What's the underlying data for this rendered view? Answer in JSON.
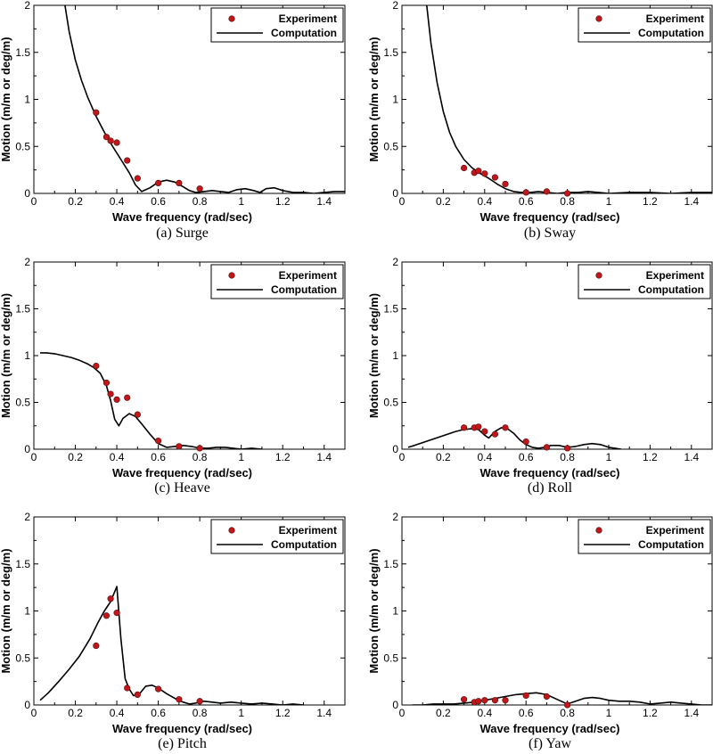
{
  "colors": {
    "marker": "#c0171b",
    "marker_edge": "#5a0a0a",
    "line": "#000000",
    "frame": "#000000"
  },
  "chart_data": [
    {
      "type": "line+scatter",
      "caption": "(a) Surge",
      "xlabel": "Wave frequency (rad/sec)",
      "ylabel": "Motion (m/m or deg/m)",
      "xlim": [
        0,
        1.5
      ],
      "ylim": [
        0,
        2
      ],
      "xticks": [
        "0",
        "0.2",
        "0.4",
        "0.6",
        "0.8",
        "1",
        "1.2",
        "1.4"
      ],
      "yticks": [
        "0",
        "0.5",
        "1",
        "1.5",
        "2"
      ],
      "legend": {
        "position": "top-right",
        "experiment_label": "Experiment",
        "computation_label": "Computation"
      },
      "experiment": {
        "x": [
          0.3,
          0.35,
          0.37,
          0.4,
          0.45,
          0.5,
          0.6,
          0.7,
          0.8
        ],
        "y": [
          0.86,
          0.6,
          0.56,
          0.54,
          0.35,
          0.16,
          0.11,
          0.11,
          0.05
        ]
      },
      "computation": {
        "x": [
          0.15,
          0.17,
          0.2,
          0.23,
          0.26,
          0.3,
          0.34,
          0.38,
          0.42,
          0.46,
          0.49,
          0.52,
          0.56,
          0.6,
          0.64,
          0.68,
          0.72,
          0.75,
          0.78,
          0.82,
          0.86,
          0.9,
          0.94,
          0.98,
          1.02,
          1.06,
          1.09,
          1.12,
          1.16,
          1.2,
          1.25,
          1.3,
          1.35,
          1.4,
          1.45,
          1.5
        ],
        "y": [
          2.0,
          1.72,
          1.42,
          1.2,
          1.02,
          0.82,
          0.65,
          0.5,
          0.36,
          0.22,
          0.09,
          0.02,
          0.06,
          0.12,
          0.14,
          0.12,
          0.07,
          0.03,
          0.01,
          0.02,
          0.03,
          0.02,
          0.01,
          0.04,
          0.05,
          0.03,
          0.01,
          0.05,
          0.06,
          0.03,
          0.01,
          0.01,
          0.0,
          0.01,
          0.02,
          0.02
        ]
      }
    },
    {
      "type": "line+scatter",
      "caption": "(b) Sway",
      "xlabel": "Wave frequency (rad/sec)",
      "ylabel": "Motion (m/m or deg/m)",
      "xlim": [
        0,
        1.5
      ],
      "ylim": [
        0,
        2
      ],
      "xticks": [
        "0",
        "0.2",
        "0.4",
        "0.6",
        "0.8",
        "1",
        "1.2",
        "1.4"
      ],
      "yticks": [
        "0",
        "0.5",
        "1",
        "1.5",
        "2"
      ],
      "legend": {
        "position": "top-right",
        "experiment_label": "Experiment",
        "computation_label": "Computation"
      },
      "experiment": {
        "x": [
          0.3,
          0.35,
          0.37,
          0.4,
          0.45,
          0.5,
          0.6,
          0.7,
          0.8
        ],
        "y": [
          0.27,
          0.22,
          0.24,
          0.21,
          0.17,
          0.1,
          0.01,
          0.02,
          0.0
        ]
      },
      "computation": {
        "x": [
          0.12,
          0.14,
          0.17,
          0.2,
          0.23,
          0.26,
          0.3,
          0.34,
          0.38,
          0.42,
          0.46,
          0.5,
          0.54,
          0.58,
          0.62,
          0.66,
          0.7,
          0.75,
          0.8,
          0.85,
          0.9,
          0.95,
          1.0,
          1.1,
          1.2,
          1.3,
          1.4,
          1.5
        ],
        "y": [
          2.0,
          1.6,
          1.18,
          0.87,
          0.65,
          0.5,
          0.36,
          0.27,
          0.21,
          0.16,
          0.1,
          0.05,
          0.02,
          0.01,
          0.01,
          0.02,
          0.01,
          0.0,
          0.01,
          0.01,
          0.02,
          0.01,
          0.0,
          0.01,
          0.01,
          0.0,
          0.01,
          0.01
        ]
      }
    },
    {
      "type": "line+scatter",
      "caption": "(c) Heave",
      "xlabel": "Wave frequency (rad/sec)",
      "ylabel": "Motion (m/m or deg/m)",
      "xlim": [
        0,
        1.5
      ],
      "ylim": [
        0,
        2
      ],
      "xticks": [
        "0",
        "0.2",
        "0.4",
        "0.6",
        "0.8",
        "1",
        "1.2",
        "1.4"
      ],
      "yticks": [
        "0",
        "0.5",
        "1",
        "1.5",
        "2"
      ],
      "legend": {
        "position": "top-right",
        "experiment_label": "Experiment",
        "computation_label": "Computation"
      },
      "experiment": {
        "x": [
          0.3,
          0.35,
          0.37,
          0.4,
          0.45,
          0.5,
          0.6,
          0.7,
          0.8
        ],
        "y": [
          0.89,
          0.71,
          0.59,
          0.53,
          0.55,
          0.37,
          0.09,
          0.03,
          0.01
        ]
      },
      "computation": {
        "x": [
          0.03,
          0.06,
          0.1,
          0.14,
          0.18,
          0.22,
          0.26,
          0.29,
          0.32,
          0.35,
          0.37,
          0.39,
          0.41,
          0.43,
          0.46,
          0.49,
          0.52,
          0.56,
          0.6,
          0.64,
          0.68,
          0.72,
          0.76,
          0.8,
          0.84,
          0.88,
          0.92,
          0.96,
          1.0,
          1.05,
          1.1
        ],
        "y": [
          1.03,
          1.03,
          1.02,
          1.0,
          0.98,
          0.95,
          0.91,
          0.87,
          0.81,
          0.68,
          0.52,
          0.32,
          0.25,
          0.33,
          0.38,
          0.35,
          0.27,
          0.16,
          0.06,
          0.02,
          0.03,
          0.04,
          0.03,
          0.01,
          0.01,
          0.02,
          0.02,
          0.01,
          0.0,
          0.01,
          0.0
        ]
      }
    },
    {
      "type": "line+scatter",
      "caption": "(d) Roll",
      "xlabel": "Wave frequency (rad/sec)",
      "ylabel": "Motion (m/m or deg/m)",
      "xlim": [
        0,
        1.5
      ],
      "ylim": [
        0,
        2
      ],
      "xticks": [
        "0",
        "0.2",
        "0.4",
        "0.6",
        "0.8",
        "1",
        "1.2",
        "1.4"
      ],
      "yticks": [
        "0",
        "0.5",
        "1",
        "1.5",
        "2"
      ],
      "legend": {
        "position": "top-right",
        "experiment_label": "Experiment",
        "computation_label": "Computation"
      },
      "experiment": {
        "x": [
          0.3,
          0.35,
          0.37,
          0.4,
          0.45,
          0.5,
          0.6,
          0.7,
          0.8
        ],
        "y": [
          0.23,
          0.23,
          0.24,
          0.19,
          0.16,
          0.23,
          0.08,
          0.02,
          0.01
        ]
      },
      "computation": {
        "x": [
          0.03,
          0.06,
          0.1,
          0.14,
          0.18,
          0.22,
          0.26,
          0.3,
          0.34,
          0.37,
          0.4,
          0.42,
          0.45,
          0.48,
          0.51,
          0.54,
          0.57,
          0.6,
          0.63,
          0.66,
          0.69,
          0.72,
          0.76,
          0.8,
          0.84,
          0.88,
          0.92,
          0.96,
          1.0,
          1.03,
          1.06
        ],
        "y": [
          0.02,
          0.04,
          0.07,
          0.1,
          0.13,
          0.16,
          0.19,
          0.21,
          0.22,
          0.21,
          0.15,
          0.12,
          0.19,
          0.23,
          0.22,
          0.17,
          0.1,
          0.05,
          0.02,
          0.01,
          0.02,
          0.04,
          0.04,
          0.02,
          0.03,
          0.05,
          0.06,
          0.05,
          0.02,
          0.01,
          0.0
        ]
      }
    },
    {
      "type": "line+scatter",
      "caption": "(e) Pitch",
      "xlabel": "Wave frequency (rad/sec)",
      "ylabel": "Motion (m/m or deg/m)",
      "xlim": [
        0,
        1.5
      ],
      "ylim": [
        0,
        2
      ],
      "xticks": [
        "0",
        "0.2",
        "0.4",
        "0.6",
        "0.8",
        "1",
        "1.2",
        "1.4"
      ],
      "yticks": [
        "0",
        "0.5",
        "1",
        "1.5",
        "2"
      ],
      "legend": {
        "position": "top-right",
        "experiment_label": "Experiment",
        "computation_label": "Computation"
      },
      "experiment": {
        "x": [
          0.3,
          0.35,
          0.37,
          0.4,
          0.45,
          0.5,
          0.6,
          0.7,
          0.8
        ],
        "y": [
          0.63,
          0.95,
          1.13,
          0.98,
          0.18,
          0.11,
          0.17,
          0.06,
          0.04
        ]
      },
      "computation": {
        "x": [
          0.03,
          0.07,
          0.12,
          0.17,
          0.22,
          0.27,
          0.31,
          0.34,
          0.37,
          0.4,
          0.42,
          0.44,
          0.46,
          0.48,
          0.51,
          0.54,
          0.57,
          0.6,
          0.64,
          0.68,
          0.72,
          0.75,
          0.78,
          0.82,
          0.86,
          0.9,
          0.95,
          1.0,
          1.05,
          1.1,
          1.15,
          1.2,
          1.25,
          1.3
        ],
        "y": [
          0.05,
          0.13,
          0.25,
          0.38,
          0.52,
          0.7,
          0.88,
          1.0,
          1.1,
          1.26,
          0.7,
          0.28,
          0.17,
          0.1,
          0.12,
          0.2,
          0.21,
          0.18,
          0.12,
          0.07,
          0.03,
          0.01,
          0.02,
          0.04,
          0.03,
          0.02,
          0.03,
          0.02,
          0.01,
          0.02,
          0.01,
          0.0,
          0.01,
          0.0
        ]
      }
    },
    {
      "type": "line+scatter",
      "caption": "(f) Yaw",
      "xlabel": "Wave frequency (rad/sec)",
      "ylabel": "Motion (m/m or deg/m)",
      "xlim": [
        0,
        1.5
      ],
      "ylim": [
        0,
        2
      ],
      "xticks": [
        "0",
        "0.2",
        "0.4",
        "0.6",
        "0.8",
        "1",
        "1.2",
        "1.4"
      ],
      "yticks": [
        "0",
        "0.5",
        "1",
        "1.5",
        "2"
      ],
      "legend": {
        "position": "top-right",
        "experiment_label": "Experiment",
        "computation_label": "Computation"
      },
      "experiment": {
        "x": [
          0.3,
          0.35,
          0.37,
          0.4,
          0.45,
          0.5,
          0.6,
          0.7,
          0.8
        ],
        "y": [
          0.06,
          0.03,
          0.04,
          0.05,
          0.05,
          0.05,
          0.1,
          0.09,
          0.0
        ]
      },
      "computation": {
        "x": [
          0.05,
          0.1,
          0.15,
          0.2,
          0.25,
          0.3,
          0.35,
          0.4,
          0.45,
          0.5,
          0.55,
          0.6,
          0.65,
          0.7,
          0.75,
          0.8,
          0.84,
          0.88,
          0.92,
          0.96,
          1.0,
          1.05,
          1.1,
          1.15,
          1.2,
          1.25,
          1.3,
          1.35,
          1.4,
          1.45,
          1.5
        ],
        "y": [
          0.0,
          0.0,
          0.01,
          0.01,
          0.01,
          0.02,
          0.03,
          0.05,
          0.07,
          0.09,
          0.11,
          0.12,
          0.13,
          0.11,
          0.06,
          0.01,
          0.04,
          0.07,
          0.08,
          0.07,
          0.05,
          0.04,
          0.04,
          0.03,
          0.01,
          0.02,
          0.03,
          0.02,
          0.01,
          0.0,
          0.0
        ]
      }
    }
  ]
}
